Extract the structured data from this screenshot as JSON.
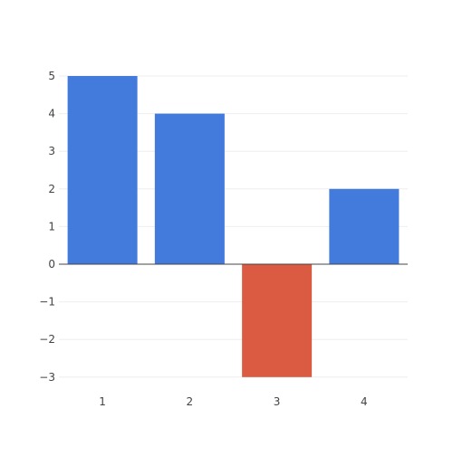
{
  "chart_data": {
    "type": "bar",
    "title": "",
    "xlabel": "",
    "ylabel": "",
    "categories": [
      "1",
      "2",
      "3",
      "4"
    ],
    "values": [
      5,
      4,
      -3,
      2
    ],
    "ylim": [
      -3.3,
      5.3
    ],
    "y_ticks": [
      5,
      4,
      3,
      2,
      1,
      0,
      -1,
      -2,
      -3
    ],
    "y_tick_labels": [
      "5",
      "4",
      "3",
      "2",
      "1",
      "0",
      "−1",
      "−2",
      "−3"
    ],
    "grid": true,
    "legend": "none",
    "colors": {
      "positive": "#427BDC",
      "negative": "#DB5A42",
      "grid": "#EEEEEE",
      "zero_line": "#444444",
      "tick_text": "#444444"
    }
  }
}
